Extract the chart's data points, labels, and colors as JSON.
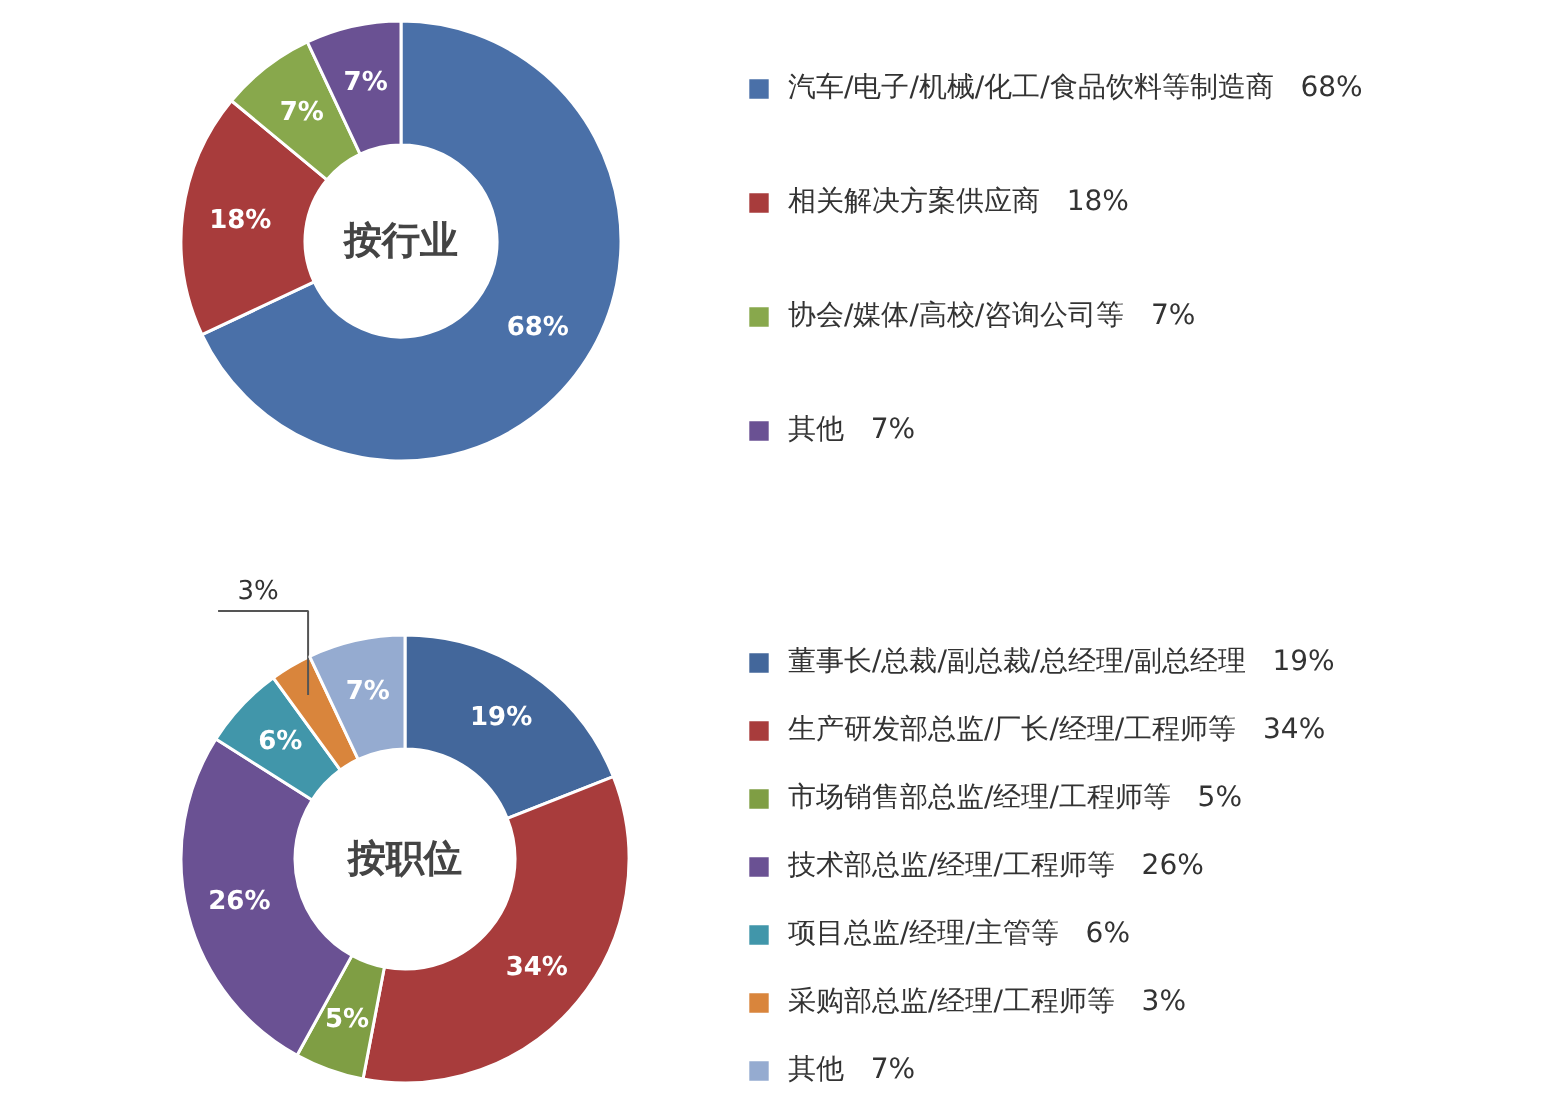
{
  "chart_data": [
    {
      "type": "donut",
      "title": "按行业",
      "legend": "right",
      "categories": [
        "汽车/电子/机械/化工/食品饮料等制造商",
        "相关解决方案供应商",
        "协会/媒体/高校/咨询公司等",
        "其他"
      ],
      "values": [
        68,
        18,
        7,
        7
      ],
      "value_labels": [
        "68%",
        "18%",
        "7%",
        "7%"
      ],
      "colors": [
        "#4a70a8",
        "#a83c3c",
        "#88a84c",
        "#6a5193"
      ]
    },
    {
      "type": "donut",
      "title": "按职位",
      "legend": "right",
      "categories": [
        "董事长/总裁/副总裁/总经理/副总经理",
        "生产研发部总监/厂长/经理/工程师等",
        "市场销售部总监/经理/工程师等",
        "技术部总监/经理/工程师等",
        "项目总监/经理/主管等",
        "采购部总监/经理/工程师等",
        "其他"
      ],
      "values": [
        19,
        34,
        5,
        26,
        6,
        3,
        7
      ],
      "value_labels": [
        "19%",
        "34%",
        "5%",
        "26%",
        "6%",
        "3%",
        "7%"
      ],
      "colors": [
        "#43679b",
        "#a83c3c",
        "#7f9e44",
        "#6a5193",
        "#4196aa",
        "#d9853c",
        "#95abd0"
      ]
    }
  ]
}
